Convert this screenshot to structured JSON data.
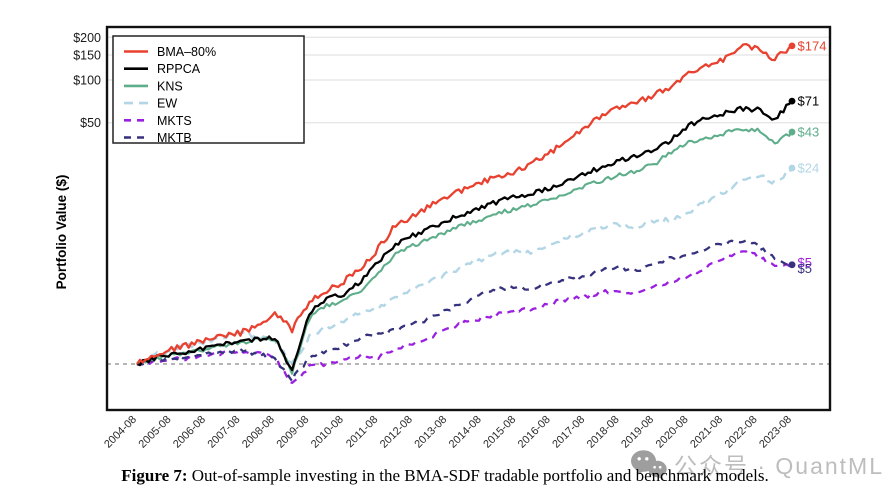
{
  "figure": {
    "caption_label": "Figure 7:",
    "caption_text": " Out-of-sample investing in the BMA-SDF tradable portfolio and benchmark models."
  },
  "watermark": {
    "text": "公众号 · QuantML",
    "icon": "wechat-icon",
    "color": "#bdbdbd"
  },
  "chart_data": {
    "type": "line",
    "title": "",
    "xlabel": "",
    "ylabel": "Portfolio Value ($)",
    "yscale": "log",
    "ylim": [
      0.55,
      230
    ],
    "grid": "horizontal",
    "legend_position": "top-left",
    "baseline": {
      "value": 1,
      "style": "dashed",
      "color": "#ababab"
    },
    "yticks": [
      {
        "value": 200,
        "label": "$200"
      },
      {
        "value": 150,
        "label": "$150"
      },
      {
        "value": 100,
        "label": "$100"
      },
      {
        "value": 50,
        "label": "$50"
      }
    ],
    "xticklabels": [
      "2004-08",
      "2005-08",
      "2006-08",
      "2007-08",
      "2008-08",
      "2009-08",
      "2010-08",
      "2011-08",
      "2012-08",
      "2013-08",
      "2014-08",
      "2015-08",
      "2016-08",
      "2017-08",
      "2018-08",
      "2019-08",
      "2020-08",
      "2021-08",
      "2022-08",
      "2023-08"
    ],
    "x": [
      "2004-08",
      "2005-02",
      "2005-08",
      "2006-02",
      "2006-08",
      "2007-02",
      "2007-08",
      "2008-02",
      "2008-08",
      "2009-02",
      "2009-08",
      "2010-02",
      "2010-08",
      "2011-02",
      "2011-08",
      "2012-02",
      "2012-08",
      "2013-02",
      "2013-08",
      "2014-02",
      "2014-08",
      "2015-02",
      "2015-08",
      "2016-02",
      "2016-08",
      "2017-02",
      "2017-08",
      "2018-02",
      "2018-08",
      "2019-02",
      "2019-08",
      "2020-02",
      "2020-08",
      "2021-02",
      "2021-08",
      "2022-02",
      "2022-08",
      "2023-02",
      "2023-08"
    ],
    "series": [
      {
        "name": "BMA–80%",
        "color": "#E8412F",
        "line_style": "solid",
        "end_label": "$174",
        "values": [
          1.0,
          1.18,
          1.28,
          1.36,
          1.48,
          1.55,
          1.66,
          1.85,
          2.25,
          1.75,
          2.75,
          3.3,
          3.8,
          4.8,
          6.5,
          9.5,
          11.0,
          13.0,
          15.0,
          17.0,
          19.0,
          21.0,
          23.0,
          26.0,
          31.0,
          37.0,
          46.0,
          56.0,
          64.0,
          70.0,
          78.0,
          89.0,
          115.0,
          125.0,
          140.0,
          175.0,
          165.0,
          140.0,
          174.0
        ]
      },
      {
        "name": "RPPCA",
        "color": "#000000",
        "line_style": "solid",
        "end_label": "$71",
        "values": [
          1.0,
          1.1,
          1.18,
          1.22,
          1.3,
          1.38,
          1.45,
          1.5,
          1.52,
          0.9,
          2.3,
          2.9,
          3.1,
          3.8,
          5.2,
          7.0,
          8.0,
          9.0,
          10.2,
          11.5,
          12.8,
          14.0,
          15.0,
          16.0,
          17.5,
          19.5,
          22.0,
          24.5,
          27.0,
          29.0,
          32.0,
          38.0,
          48.0,
          53.0,
          58.0,
          63.0,
          62.0,
          53.0,
          71.0
        ]
      },
      {
        "name": "KNS",
        "color": "#5FAE8B",
        "line_style": "solid",
        "end_label": "$43",
        "values": [
          1.0,
          1.09,
          1.16,
          1.2,
          1.28,
          1.36,
          1.42,
          1.48,
          1.5,
          0.88,
          2.1,
          2.6,
          2.8,
          3.3,
          4.4,
          6.0,
          6.8,
          7.6,
          8.6,
          9.6,
          10.5,
          11.5,
          12.5,
          13.2,
          14.5,
          16.0,
          18.0,
          19.5,
          21.5,
          23.0,
          25.5,
          31.0,
          36.0,
          39.0,
          42.0,
          46.0,
          44.0,
          36.0,
          43.0
        ]
      },
      {
        "name": "EW",
        "color": "#B3D6E6",
        "line_style": "dashed",
        "end_label": "$24",
        "values": [
          1.0,
          1.16,
          1.26,
          1.34,
          1.45,
          1.55,
          1.65,
          1.55,
          1.45,
          1.0,
          1.55,
          1.8,
          2.0,
          2.3,
          2.5,
          2.95,
          3.3,
          3.8,
          4.3,
          4.9,
          5.5,
          6.0,
          6.2,
          6.0,
          7.0,
          7.8,
          8.5,
          9.3,
          9.6,
          9.2,
          10.0,
          10.5,
          11.5,
          14.0,
          16.0,
          19.0,
          21.5,
          19.0,
          24.0
        ]
      },
      {
        "name": "MKTS",
        "color": "#9B1FE0",
        "line_style": "dashed",
        "end_label": "$5",
        "values": [
          1.0,
          1.04,
          1.08,
          1.1,
          1.15,
          1.2,
          1.25,
          1.2,
          1.1,
          0.72,
          0.95,
          1.0,
          1.05,
          1.15,
          1.1,
          1.3,
          1.4,
          1.55,
          1.75,
          1.95,
          2.1,
          2.25,
          2.4,
          2.45,
          2.7,
          2.85,
          3.0,
          3.2,
          3.3,
          3.1,
          3.5,
          3.8,
          4.2,
          4.8,
          5.5,
          6.3,
          5.8,
          4.8,
          5.0
        ]
      },
      {
        "name": "MKTB",
        "color": "#36327E",
        "line_style": "dashed",
        "end_label": "$5",
        "values": [
          1.0,
          1.06,
          1.1,
          1.12,
          1.18,
          1.22,
          1.25,
          1.18,
          1.1,
          0.78,
          1.1,
          1.25,
          1.35,
          1.55,
          1.6,
          1.75,
          1.9,
          2.1,
          2.4,
          2.7,
          3.1,
          3.4,
          3.5,
          3.4,
          3.8,
          4.0,
          4.2,
          4.6,
          4.8,
          4.5,
          5.0,
          5.6,
          5.8,
          6.5,
          7.0,
          7.4,
          6.8,
          5.5,
          5.0
        ]
      }
    ]
  }
}
